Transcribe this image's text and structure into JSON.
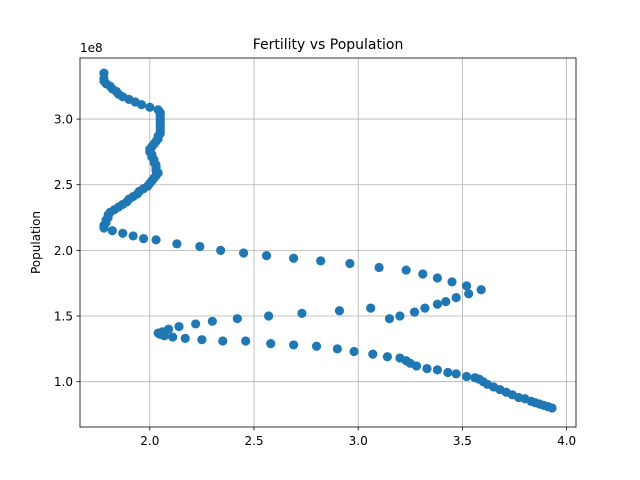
{
  "chart_data": {
    "type": "scatter",
    "title": "Fertility vs Population",
    "xlabel": "",
    "ylabel": "Population",
    "offset_label": "1e8",
    "xlim": [
      1.665,
      4.045
    ],
    "ylim": [
      0.655,
      3.465
    ],
    "x_ticks": [
      2.0,
      2.5,
      3.0,
      3.5,
      4.0
    ],
    "x_tick_labels": [
      "2.0",
      "2.5",
      "3.0",
      "3.5",
      "4.0"
    ],
    "y_ticks": [
      1.0,
      1.5,
      2.0,
      2.5,
      3.0
    ],
    "y_tick_labels": [
      "1.0",
      "1.5",
      "2.0",
      "2.5",
      "3.0"
    ],
    "grid": true,
    "marker_color": "#1f77b4",
    "y_unit_multiplier": 100000000,
    "points": [
      [
        3.93,
        0.8
      ],
      [
        3.91,
        0.81
      ],
      [
        3.89,
        0.82
      ],
      [
        3.87,
        0.83
      ],
      [
        3.85,
        0.84
      ],
      [
        3.83,
        0.85
      ],
      [
        3.8,
        0.87
      ],
      [
        3.77,
        0.88
      ],
      [
        3.74,
        0.9
      ],
      [
        3.71,
        0.92
      ],
      [
        3.68,
        0.94
      ],
      [
        3.65,
        0.96
      ],
      [
        3.62,
        0.98
      ],
      [
        3.6,
        1.0
      ],
      [
        3.58,
        1.02
      ],
      [
        3.56,
        1.03
      ],
      [
        3.52,
        1.04
      ],
      [
        3.47,
        1.06
      ],
      [
        3.43,
        1.07
      ],
      [
        3.38,
        1.09
      ],
      [
        3.33,
        1.1
      ],
      [
        3.28,
        1.12
      ],
      [
        3.25,
        1.14
      ],
      [
        3.23,
        1.16
      ],
      [
        3.2,
        1.18
      ],
      [
        3.14,
        1.19
      ],
      [
        3.07,
        1.21
      ],
      [
        2.98,
        1.23
      ],
      [
        2.9,
        1.25
      ],
      [
        2.8,
        1.27
      ],
      [
        2.69,
        1.28
      ],
      [
        2.58,
        1.29
      ],
      [
        2.46,
        1.31
      ],
      [
        2.35,
        1.31
      ],
      [
        2.25,
        1.32
      ],
      [
        2.17,
        1.33
      ],
      [
        2.11,
        1.34
      ],
      [
        2.07,
        1.35
      ],
      [
        2.05,
        1.36
      ],
      [
        2.04,
        1.37
      ],
      [
        2.06,
        1.38
      ],
      [
        2.09,
        1.4
      ],
      [
        2.14,
        1.42
      ],
      [
        2.22,
        1.44
      ],
      [
        2.3,
        1.46
      ],
      [
        2.42,
        1.48
      ],
      [
        2.57,
        1.5
      ],
      [
        2.73,
        1.52
      ],
      [
        2.91,
        1.54
      ],
      [
        3.06,
        1.56
      ],
      [
        3.15,
        1.48
      ],
      [
        3.2,
        1.5
      ],
      [
        3.27,
        1.53
      ],
      [
        3.32,
        1.56
      ],
      [
        3.38,
        1.59
      ],
      [
        3.42,
        1.61
      ],
      [
        3.47,
        1.64
      ],
      [
        3.53,
        1.67
      ],
      [
        3.59,
        1.7
      ],
      [
        3.52,
        1.73
      ],
      [
        3.45,
        1.76
      ],
      [
        3.38,
        1.79
      ],
      [
        3.31,
        1.82
      ],
      [
        3.23,
        1.85
      ],
      [
        3.1,
        1.87
      ],
      [
        2.96,
        1.9
      ],
      [
        2.82,
        1.92
      ],
      [
        2.69,
        1.94
      ],
      [
        2.56,
        1.96
      ],
      [
        2.45,
        1.98
      ],
      [
        2.34,
        2.0
      ],
      [
        2.24,
        2.03
      ],
      [
        2.13,
        2.05
      ],
      [
        2.03,
        2.08
      ],
      [
        1.97,
        2.09
      ],
      [
        1.92,
        2.11
      ],
      [
        1.87,
        2.13
      ],
      [
        1.82,
        2.15
      ],
      [
        1.78,
        2.17
      ],
      [
        1.78,
        2.19
      ],
      [
        1.79,
        2.21
      ],
      [
        1.79,
        2.23
      ],
      [
        1.8,
        2.25
      ],
      [
        1.8,
        2.27
      ],
      [
        1.81,
        2.29
      ],
      [
        1.83,
        2.31
      ],
      [
        1.85,
        2.33
      ],
      [
        1.87,
        2.35
      ],
      [
        1.89,
        2.37
      ],
      [
        1.9,
        2.39
      ],
      [
        1.92,
        2.41
      ],
      [
        1.94,
        2.43
      ],
      [
        1.95,
        2.45
      ],
      [
        1.97,
        2.47
      ],
      [
        1.99,
        2.49
      ],
      [
        2.0,
        2.51
      ],
      [
        2.01,
        2.53
      ],
      [
        2.02,
        2.55
      ],
      [
        2.03,
        2.57
      ],
      [
        2.04,
        2.59
      ],
      [
        2.03,
        2.61
      ],
      [
        2.03,
        2.63
      ],
      [
        2.03,
        2.65
      ],
      [
        2.02,
        2.67
      ],
      [
        2.02,
        2.69
      ],
      [
        2.01,
        2.71
      ],
      [
        2.01,
        2.73
      ],
      [
        2.0,
        2.75
      ],
      [
        2.0,
        2.77
      ],
      [
        2.01,
        2.79
      ],
      [
        2.02,
        2.81
      ],
      [
        2.03,
        2.83
      ],
      [
        2.04,
        2.85
      ],
      [
        2.04,
        2.87
      ],
      [
        2.05,
        2.89
      ],
      [
        2.05,
        2.91
      ],
      [
        2.05,
        2.93
      ],
      [
        2.05,
        2.95
      ],
      [
        2.05,
        2.97
      ],
      [
        2.05,
        2.99
      ],
      [
        2.05,
        3.01
      ],
      [
        2.05,
        3.03
      ],
      [
        2.05,
        3.05
      ],
      [
        2.04,
        3.07
      ],
      [
        2.0,
        3.09
      ],
      [
        1.96,
        3.11
      ],
      [
        1.93,
        3.13
      ],
      [
        1.9,
        3.15
      ],
      [
        1.87,
        3.17
      ],
      [
        1.85,
        3.19
      ],
      [
        1.84,
        3.21
      ],
      [
        1.82,
        3.23
      ],
      [
        1.81,
        3.25
      ],
      [
        1.79,
        3.27
      ],
      [
        1.78,
        3.29
      ],
      [
        1.78,
        3.31
      ],
      [
        1.78,
        3.35
      ]
    ]
  }
}
